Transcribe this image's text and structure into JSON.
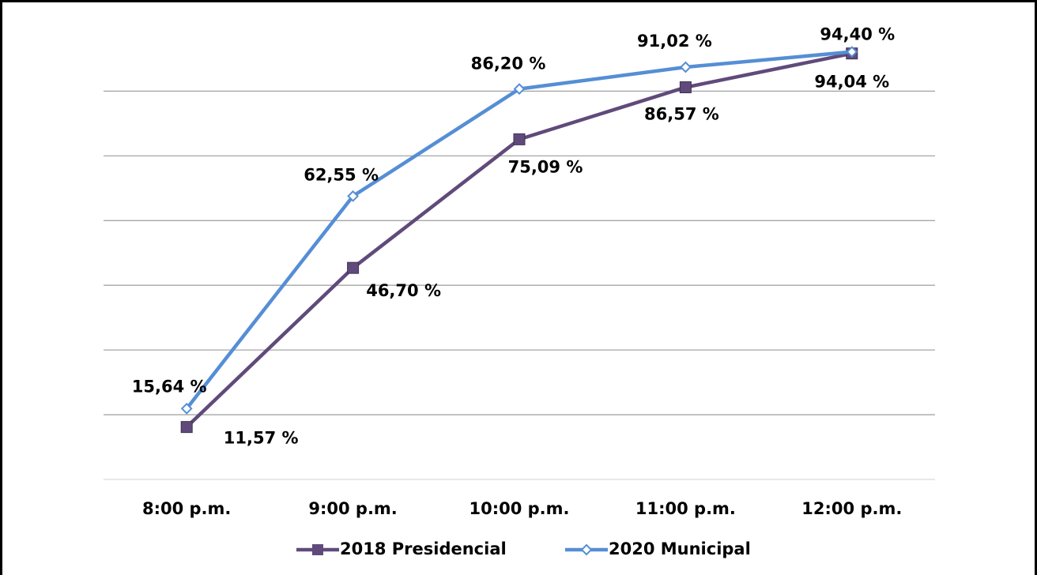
{
  "chart_data": {
    "type": "line",
    "categories": [
      "8:00 p.m.",
      "9:00 p.m.",
      "10:00 p.m.",
      "11:00 p.m.",
      "12:00 p.m."
    ],
    "series": [
      {
        "name": "2018 Presidencial",
        "color": "#604a7b",
        "marker": "square",
        "values": [
          11.57,
          46.7,
          75.09,
          86.57,
          94.04
        ],
        "value_labels": [
          "11,57 %",
          "46,70 %",
          "75,09 %",
          "86,57 %",
          "94,04 %"
        ]
      },
      {
        "name": "2020 Municipal",
        "color": "#558ed5",
        "marker": "diamond",
        "values": [
          15.64,
          62.55,
          86.2,
          91.02,
          94.4
        ],
        "value_labels": [
          "15,64 %",
          "62,55 %",
          "86,20 %",
          "91,02 %",
          "94,40 %"
        ]
      }
    ],
    "ylim": [
      0,
      100
    ],
    "yticks": [
      0,
      14.29,
      28.57,
      42.86,
      57.14,
      71.43,
      85.71
    ],
    "grid": true,
    "legend": "bottom"
  }
}
